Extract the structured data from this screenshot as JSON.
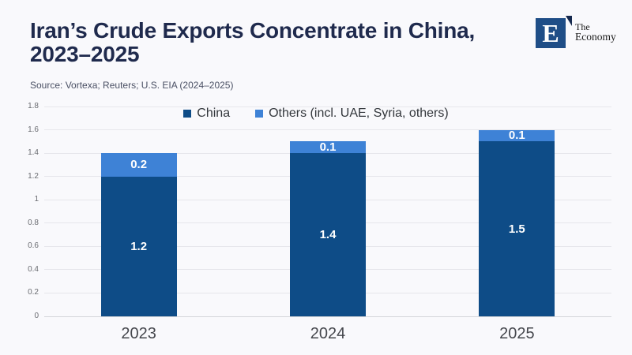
{
  "header": {
    "title_line1": "Iran’s Crude Exports Concentrate in China,",
    "title_line2": "2023–2025",
    "source": "Source: Vortexa; Reuters; U.S. EIA (2024–2025)",
    "logo": {
      "letter": "E",
      "brand_line1": "The",
      "brand_line2": "Economy",
      "box_color": "#1F4E87",
      "mark_color": "#16294E"
    }
  },
  "legend": {
    "items": [
      {
        "label": "China",
        "color": "#0E4C87"
      },
      {
        "label": "Others (incl. UAE, Syria, others)",
        "color": "#3E82D6"
      }
    ]
  },
  "chart_data": {
    "type": "bar",
    "stacked": true,
    "title": "Iran’s Crude Exports Concentrate in China, 2023–2025",
    "categories": [
      "2023",
      "2024",
      "2025"
    ],
    "series": [
      {
        "name": "China",
        "color": "#0E4C87",
        "values": [
          1.2,
          1.4,
          1.5
        ]
      },
      {
        "name": "Others (incl. UAE, Syria, others)",
        "color": "#3E82D6",
        "values": [
          0.2,
          0.1,
          0.1
        ]
      }
    ],
    "ylim": [
      0,
      1.8
    ],
    "yticks": [
      0,
      0.2,
      0.4,
      0.6,
      0.8,
      1,
      1.2,
      1.4,
      1.6,
      1.8
    ],
    "ytick_labels": [
      "0",
      "0.2",
      "0.4",
      "0.6",
      "0.8",
      "1",
      "1.2",
      "1.4",
      "1.6",
      "1.8"
    ],
    "grid": true,
    "legend_position": "top",
    "data_labels": "inside",
    "xlabel": "",
    "ylabel": ""
  }
}
